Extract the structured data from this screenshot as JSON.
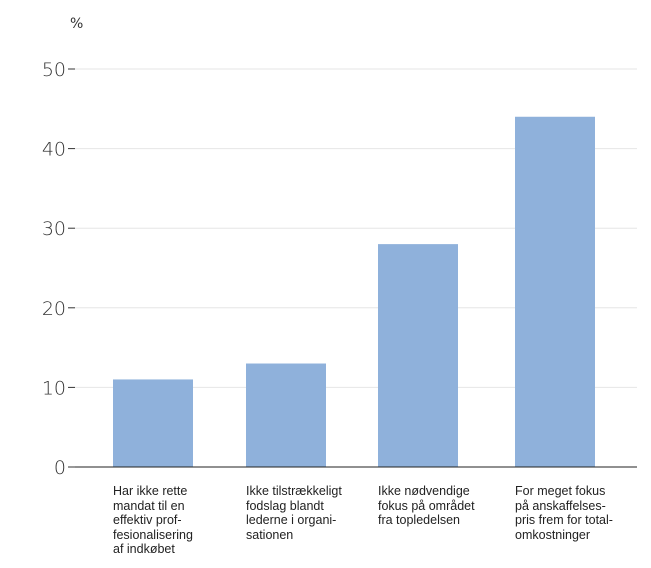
{
  "chart_data": {
    "type": "bar",
    "unit": "%",
    "ylim": [
      0,
      50
    ],
    "yticks": [
      0,
      10,
      20,
      30,
      40,
      50
    ],
    "grid": true,
    "bar_color": "#8fb1db",
    "categories": [
      "Har ikke rette mandat til en effektiv prof-fesionalisering af indkøbet",
      "Ikke tilstrækkeligt fodslag blandt lederne i organi-sationen",
      "Ikke nødvendige fokus på området fra topledelsen",
      "For meget fokus på anskaffelses-pris frem for total-omkostninger"
    ],
    "category_lines": [
      [
        "Har ikke rette",
        "mandat til en",
        "effektiv prof-",
        "fesionalisering",
        "af indkøbet"
      ],
      [
        "Ikke tilstrækkeligt",
        "fodslag blandt",
        "lederne i organi-",
        "sationen"
      ],
      [
        "Ikke nødvendige",
        "fokus på området",
        "fra topledelsen"
      ],
      [
        "For meget fokus",
        "på anskaffelses-",
        "pris frem for total-",
        "omkostninger"
      ]
    ],
    "values": [
      11,
      13,
      28,
      44
    ]
  }
}
